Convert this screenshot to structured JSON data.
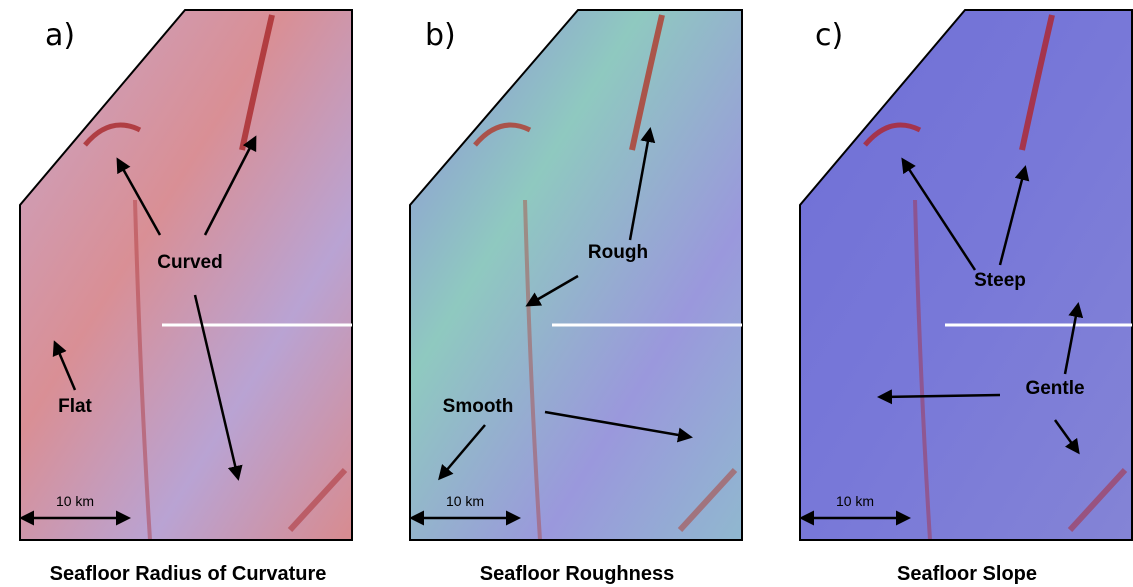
{
  "panels": [
    {
      "label": "a)",
      "annotations": [
        "Curved",
        "Flat"
      ],
      "scale": "10 km",
      "caption": "Seafloor Radius of Curvature"
    },
    {
      "label": "b)",
      "annotations": [
        "Rough",
        "Smooth"
      ],
      "scale": "10 km",
      "caption": "Seafloor Roughness"
    },
    {
      "label": "c)",
      "annotations": [
        "Steep",
        "Gentle"
      ],
      "scale": "10 km",
      "caption": "Seafloor Slope"
    }
  ]
}
